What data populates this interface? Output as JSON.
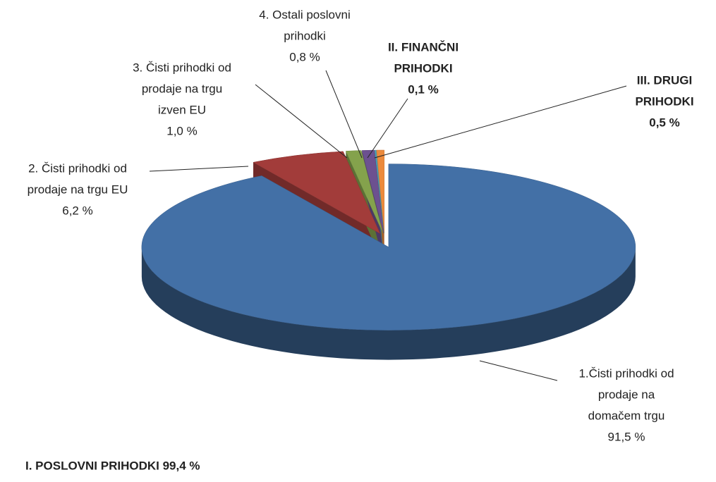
{
  "chart_data": {
    "type": "pie3d",
    "categories": [
      [
        "1.Čisti prihodki od",
        "prodaje na",
        "domačem trgu"
      ],
      [
        "2. Čisti prihodki od",
        "prodaje na trgu EU"
      ],
      [
        "3. Čisti prihodki od",
        "prodaje na trgu",
        "izven EU"
      ],
      [
        "4. Ostali poslovni",
        "prihodki"
      ],
      [
        "II. FINANČNI",
        "PRIHODKI"
      ],
      [
        "III. DRUGI",
        "PRIHODKI"
      ]
    ],
    "values": [
      91.5,
      6.2,
      1.0,
      0.8,
      0.1,
      0.5
    ],
    "value_labels": [
      "91,5 %",
      "6,2 %",
      "1,0 %",
      "0,8 %",
      "0,1 %",
      "0,5 %"
    ],
    "colors": [
      "#4370a6",
      "#a23c3a",
      "#84a24c",
      "#6c5190",
      "#4aa3ba",
      "#ec8a3c"
    ],
    "bold": [
      false,
      false,
      false,
      false,
      true,
      true
    ],
    "annotation": "I. POSLOVNI PRIHODKI 99,4 %"
  }
}
